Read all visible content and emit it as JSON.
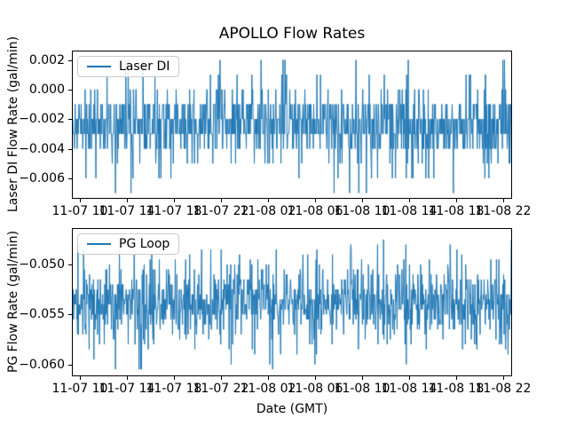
{
  "figure": {
    "title": "APOLLO Flow Rates",
    "xlabel": "Date (GMT)",
    "background_color": "#ffffff",
    "line_color": "#1f77b4"
  },
  "chart_data": [
    {
      "type": "line",
      "subplot": "top",
      "ylabel": "Laser DI Flow Rate (gal/min)",
      "legend": {
        "label": "Laser DI",
        "position": "upper-left"
      },
      "series": [
        {
          "name": "Laser DI",
          "color": "#1f77b4"
        }
      ],
      "x_ticks": [
        "11-07 10",
        "11-07 14",
        "11-07 18",
        "11-07 22",
        "11-08 02",
        "11-08 06",
        "11-08 10",
        "11-08 14",
        "11-08 18",
        "11-08 22"
      ],
      "y_ticks": [
        {
          "value": 0.002,
          "label": "0.002"
        },
        {
          "value": 0.0,
          "label": "0.000"
        },
        {
          "value": -0.002,
          "label": "−0.002"
        },
        {
          "value": -0.004,
          "label": "−0.004"
        },
        {
          "value": -0.006,
          "label": "−0.006"
        }
      ],
      "ylim": [
        -0.00733,
        0.00257
      ],
      "grid": false,
      "signal": {
        "description": "Dense quantized noise (0.001 gal/min steps); solid band -0.001 to -0.004, most samples at -0.002/-0.003, frequent spikes to 0.000, occasional peaks to 0.002 and dips to -0.007",
        "seed": 11,
        "n_points": 1100,
        "levels": [
          0.002,
          0.001,
          0.0,
          -0.001,
          -0.002,
          -0.003,
          -0.004,
          -0.005,
          -0.006,
          -0.007
        ],
        "weights": [
          0.006,
          0.01,
          0.05,
          0.16,
          0.29,
          0.29,
          0.13,
          0.035,
          0.018,
          0.006
        ]
      }
    },
    {
      "type": "line",
      "subplot": "bottom",
      "ylabel": "PG Flow Rate (gal/min)",
      "legend": {
        "label": "PG Loop",
        "position": "upper-left"
      },
      "series": [
        {
          "name": "PG Loop",
          "color": "#1f77b4"
        }
      ],
      "x_ticks": [
        "11-07 10",
        "11-07 14",
        "11-07 18",
        "11-07 22",
        "11-08 02",
        "11-08 06",
        "11-08 10",
        "11-08 14",
        "11-08 18",
        "11-08 22"
      ],
      "y_ticks": [
        {
          "value": -0.05,
          "label": "−0.050"
        },
        {
          "value": -0.055,
          "label": "−0.055"
        },
        {
          "value": -0.06,
          "label": "−0.060"
        }
      ],
      "ylim": [
        -0.06111,
        -0.04644
      ],
      "grid": false,
      "signal": {
        "description": "Dense quantized noise (0.0005 gal/min steps); solid band -0.0525 to -0.0555 centered near -0.054, spikes up to about -0.047 and down to about -0.0605",
        "seed": 97,
        "n_points": 1100,
        "levels": [
          -0.0475,
          -0.048,
          -0.0485,
          -0.049,
          -0.0495,
          -0.05,
          -0.0505,
          -0.051,
          -0.0515,
          -0.052,
          -0.0525,
          -0.053,
          -0.0535,
          -0.054,
          -0.0545,
          -0.055,
          -0.0555,
          -0.056,
          -0.0565,
          -0.057,
          -0.0575,
          -0.058,
          -0.0585,
          -0.059,
          -0.0595,
          -0.06,
          -0.0605
        ],
        "weights": [
          0.002,
          0.004,
          0.006,
          0.01,
          0.012,
          0.016,
          0.02,
          0.028,
          0.036,
          0.048,
          0.07,
          0.095,
          0.11,
          0.115,
          0.11,
          0.095,
          0.068,
          0.045,
          0.03,
          0.022,
          0.016,
          0.012,
          0.009,
          0.007,
          0.005,
          0.004,
          0.003
        ]
      }
    }
  ]
}
